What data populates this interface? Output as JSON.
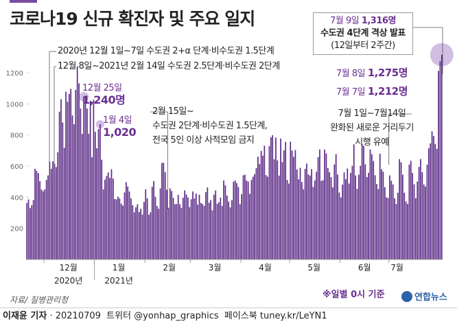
{
  "title": "코로나19 신규 확진자 및 주요 일지",
  "chart_data": {
    "type": "bar",
    "title": "코로나19 신규 확진자 및 주요 일지",
    "xlabel": "",
    "ylabel": "",
    "ylim": [
      0,
      1350
    ],
    "yticks": [
      200,
      400,
      600,
      800,
      1000,
      1200
    ],
    "x_month_labels": [
      "12월",
      "1월",
      "2월",
      "3월",
      "4월",
      "5월",
      "6월",
      "7월"
    ],
    "x_year_labels": [
      "2020년",
      "2021년"
    ],
    "series_name": "일별 신규 확진자",
    "period": "2020-11-20 ~ 2021-07-09 (daily)",
    "values": [
      363,
      386,
      330,
      349,
      382,
      583,
      569,
      555,
      503,
      450,
      438,
      451,
      511,
      540,
      629,
      583,
      631,
      615,
      594,
      689,
      950,
      1030,
      880,
      718,
      1078,
      1014,
      1064,
      1097,
      926,
      869,
      1090,
      1241,
      1132,
      970,
      807,
      1045,
      1050,
      970,
      808,
      1020,
      657,
      1027,
      820,
      715,
      838,
      869,
      641,
      451,
      513,
      537,
      560,
      524,
      580,
      520,
      389,
      386,
      404,
      392,
      359,
      346,
      431,
      497,
      469,
      437,
      392,
      349,
      303,
      336,
      355,
      305,
      326,
      289,
      370,
      451,
      393,
      288,
      303,
      467,
      504,
      403,
      344,
      326,
      457,
      621,
      621,
      561,
      448,
      332,
      457,
      440,
      396,
      355,
      356,
      415,
      355,
      332,
      396,
      444,
      418,
      399,
      337,
      387,
      437,
      392,
      424,
      353,
      416,
      363,
      356,
      344,
      433,
      463,
      364,
      382,
      316,
      416,
      444,
      357,
      367,
      398,
      344,
      508,
      477,
      411,
      372,
      335,
      382,
      500,
      508,
      491,
      466,
      355,
      420,
      541,
      545,
      507,
      501,
      422,
      511,
      532,
      549,
      587,
      661,
      614,
      698,
      667,
      731,
      542,
      532,
      729,
      785,
      799,
      644,
      783,
      637,
      539,
      777,
      626,
      701,
      755,
      511,
      488,
      757,
      700,
      660,
      703,
      579,
      515,
      589,
      498,
      452,
      582,
      616,
      547,
      539,
      581,
      467,
      508,
      564,
      658,
      707,
      505,
      510,
      707,
      681,
      587,
      561,
      529,
      463,
      611,
      677,
      546,
      430,
      399,
      481,
      560,
      516,
      585,
      488,
      556,
      602,
      740,
      540,
      454,
      545,
      602,
      741,
      731,
      611,
      529,
      557,
      707,
      677,
      633,
      541,
      485,
      453,
      680,
      580,
      564,
      465,
      399,
      395,
      540,
      506,
      482,
      393,
      357,
      429,
      645,
      625,
      545,
      429,
      373,
      357,
      610,
      634,
      556,
      483,
      394,
      501,
      595,
      645,
      561,
      482,
      468,
      610,
      715,
      746,
      824,
      794,
      743,
      711,
      1212,
      1275,
      1316
    ],
    "highlights": [
      {
        "label": "12월 25일",
        "value": "1,240명"
      },
      {
        "label": "1월 4일",
        "value": "1,020"
      },
      {
        "label": "7월 7일",
        "value": "1,212명"
      },
      {
        "label": "7월 8일",
        "value": "1,275명"
      },
      {
        "label": "7월 9일",
        "value": "1,316명"
      }
    ]
  },
  "annotations": {
    "policy1": "2020년 12월 1일~7일 수도권 2+α 단계·비수도권 1.5단계",
    "policy2": "12월 8일~2021년 2월 14일 수도권 2.5단계·비수도권 2단계",
    "dec25_date": "12월 25일",
    "dec25_value": "1,240명",
    "jan4_date": "1월 4일",
    "jan4_value": "1,020",
    "feb15_line1": "2월 15일~",
    "feb15_line2": "수도권 2단계·비수도권 1.5단계,",
    "feb15_line3": "전국 5인 이상 사적모임 금지",
    "jul9_date": "7월 9일",
    "jul9_value": "1,316명",
    "jul9_line2": "수도권 4단계 격상 발표",
    "jul9_line3": "(12일부터 2주간)",
    "jul8_date": "7월 8일",
    "jul8_value": "1,275명",
    "jul7_date": "7월 7일",
    "jul7_value": "1,212명",
    "jul1_line1": "7월 1일~7월14일",
    "jul1_line2": "완화된 새로운 거리두기",
    "jul1_line3": "시행 유예"
  },
  "source": "자료/ 질병관리청",
  "note": "※일별 0시 기준",
  "logo": "연합뉴스",
  "footer": {
    "author": "이재윤 기자",
    "date": "20210709",
    "twitter": "트위터 @yonhap_graphics",
    "facebook": "페이스북 tuney.kr/LeYN1"
  },
  "colors": {
    "bar": "#5b2a86",
    "highlight": "#c9b3dd",
    "accent": "#6a2f91",
    "axis": "#888888"
  }
}
